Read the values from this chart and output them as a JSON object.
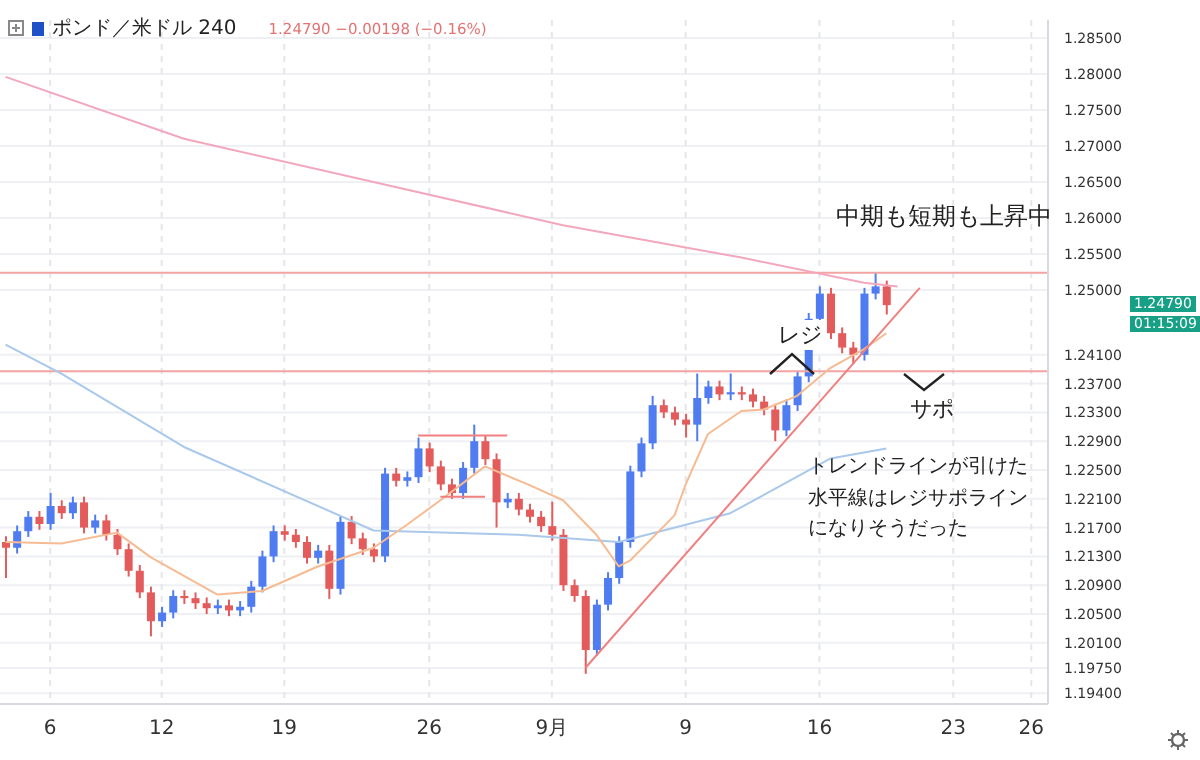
{
  "chart_data": {
    "type": "candlestick",
    "title": "ポンド／米ドル 240",
    "subtitle": "1.24790 −0.00198 (−0.16%)",
    "categories": [
      null,
      null,
      null,
      null,
      "6",
      null,
      null,
      null,
      null,
      null,
      null,
      null,
      null,
      null,
      "12",
      null,
      null,
      null,
      null,
      null,
      null,
      null,
      null,
      null,
      null,
      "19",
      null,
      null,
      null,
      null,
      null,
      null,
      null,
      null,
      null,
      null,
      null,
      null,
      "26",
      null,
      null,
      null,
      null,
      null,
      null,
      null,
      null,
      null,
      null,
      "9月",
      null,
      null,
      null,
      null,
      null,
      null,
      null,
      null,
      null,
      null,
      null,
      "9",
      null,
      null,
      null,
      null,
      null,
      null,
      null,
      null,
      null,
      null,
      null,
      "16",
      null,
      null,
      null,
      null,
      null,
      null,
      null,
      null,
      null,
      null,
      null,
      "23",
      null,
      null,
      null,
      null,
      null,
      null,
      "26",
      null
    ],
    "ohlc": [
      [
        1.215,
        1.2158,
        1.21,
        1.2142
      ],
      [
        1.2142,
        1.2173,
        1.2134,
        1.2165
      ],
      [
        1.2165,
        1.2193,
        1.2157,
        1.2185
      ],
      [
        1.2185,
        1.2193,
        1.2167,
        1.2175
      ],
      [
        1.2175,
        1.2218,
        1.2167,
        1.22
      ],
      [
        1.22,
        1.2208,
        1.2182,
        1.219
      ],
      [
        1.219,
        1.2213,
        1.2182,
        1.2205
      ],
      [
        1.2205,
        1.2213,
        1.2162,
        1.217
      ],
      [
        1.217,
        1.2188,
        1.2162,
        1.218
      ],
      [
        1.218,
        1.2188,
        1.2152,
        1.216
      ],
      [
        1.216,
        1.2168,
        1.2132,
        1.214
      ],
      [
        1.214,
        1.2148,
        1.2102,
        1.211
      ],
      [
        1.211,
        1.2118,
        1.2072,
        1.208
      ],
      [
        1.208,
        1.2088,
        1.2019,
        1.204
      ],
      [
        1.204,
        1.206,
        1.2032,
        1.2052
      ],
      [
        1.2052,
        1.2083,
        1.2044,
        1.2075
      ],
      [
        1.2075,
        1.2083,
        1.2064,
        1.2072
      ],
      [
        1.2072,
        1.208,
        1.2057,
        1.2065
      ],
      [
        1.2065,
        1.2073,
        1.205,
        1.2058
      ],
      [
        1.2058,
        1.207,
        1.205,
        1.2062
      ],
      [
        1.2062,
        1.207,
        1.2047,
        1.2055
      ],
      [
        1.2055,
        1.2068,
        1.2047,
        1.206
      ],
      [
        1.206,
        1.2096,
        1.2052,
        1.2088
      ],
      [
        1.2088,
        1.2138,
        1.208,
        1.213
      ],
      [
        1.213,
        1.2173,
        1.2122,
        1.2165
      ],
      [
        1.2165,
        1.2173,
        1.2152,
        1.216
      ],
      [
        1.216,
        1.2168,
        1.2142,
        1.215
      ],
      [
        1.215,
        1.2158,
        1.212,
        1.2128
      ],
      [
        1.2128,
        1.2146,
        1.212,
        1.2138
      ],
      [
        1.2138,
        1.2146,
        1.2071,
        1.2085
      ],
      [
        1.2085,
        1.2186,
        1.2077,
        1.2178
      ],
      [
        1.2178,
        1.2186,
        1.2147,
        1.2155
      ],
      [
        1.2155,
        1.2163,
        1.2132,
        1.214
      ],
      [
        1.214,
        1.2148,
        1.2122,
        1.213
      ],
      [
        1.213,
        1.2253,
        1.2122,
        1.2245
      ],
      [
        1.2245,
        1.2253,
        1.2227,
        1.2235
      ],
      [
        1.2235,
        1.2248,
        1.2227,
        1.224
      ],
      [
        1.224,
        1.2295,
        1.2232,
        1.228
      ],
      [
        1.228,
        1.2288,
        1.2247,
        1.2255
      ],
      [
        1.2255,
        1.2263,
        1.2222,
        1.223
      ],
      [
        1.223,
        1.2238,
        1.221,
        1.2218
      ],
      [
        1.2218,
        1.2261,
        1.221,
        1.2253
      ],
      [
        1.2253,
        1.2313,
        1.2245,
        1.229
      ],
      [
        1.229,
        1.2298,
        1.2257,
        1.2265
      ],
      [
        1.2265,
        1.2273,
        1.217,
        1.2205
      ],
      [
        1.2205,
        1.2218,
        1.2197,
        1.221
      ],
      [
        1.221,
        1.2218,
        1.2187,
        1.2195
      ],
      [
        1.2195,
        1.2203,
        1.2177,
        1.2185
      ],
      [
        1.2185,
        1.2193,
        1.2164,
        1.2172
      ],
      [
        1.2172,
        1.2206,
        1.2152,
        1.216
      ],
      [
        1.216,
        1.2168,
        1.2082,
        1.209
      ],
      [
        1.209,
        1.2098,
        1.2067,
        1.2075
      ],
      [
        1.2075,
        1.2083,
        1.1967,
        1.2
      ],
      [
        1.2,
        1.207,
        1.1992,
        1.2063
      ],
      [
        1.2063,
        1.2108,
        1.2055,
        1.21
      ],
      [
        1.21,
        1.2158,
        1.2092,
        1.215
      ],
      [
        1.215,
        1.2256,
        1.2142,
        1.2248
      ],
      [
        1.2248,
        1.2295,
        1.224,
        1.2287
      ],
      [
        1.2287,
        1.2353,
        1.2279,
        1.234
      ],
      [
        1.234,
        1.2348,
        1.2322,
        1.233
      ],
      [
        1.233,
        1.2338,
        1.2312,
        1.232
      ],
      [
        1.232,
        1.2328,
        1.2295,
        1.2313
      ],
      [
        1.2313,
        1.2384,
        1.229,
        1.235
      ],
      [
        1.235,
        1.2374,
        1.2342,
        1.2366
      ],
      [
        1.2366,
        1.2374,
        1.2347,
        1.2355
      ],
      [
        1.2355,
        1.2384,
        1.2347,
        1.2358
      ],
      [
        1.2358,
        1.2366,
        1.2347,
        1.2355
      ],
      [
        1.2355,
        1.2363,
        1.2337,
        1.2345
      ],
      [
        1.2345,
        1.2353,
        1.2326,
        1.2334
      ],
      [
        1.2334,
        1.2342,
        1.229,
        1.2305
      ],
      [
        1.2305,
        1.2348,
        1.2297,
        1.234
      ],
      [
        1.234,
        1.2388,
        1.2332,
        1.238
      ],
      [
        1.238,
        1.2468,
        1.2372,
        1.246
      ],
      [
        1.246,
        1.2505,
        1.2452,
        1.2495
      ],
      [
        1.2495,
        1.2503,
        1.2432,
        1.244
      ],
      [
        1.244,
        1.2448,
        1.2412,
        1.242
      ],
      [
        1.242,
        1.2428,
        1.2397,
        1.241
      ],
      [
        1.241,
        1.2503,
        1.2402,
        1.2495
      ],
      [
        1.2495,
        1.2524,
        1.2487,
        1.2505
      ],
      [
        1.2505,
        1.2513,
        1.2466,
        1.2479
      ],
      null,
      null,
      null,
      null,
      null,
      null,
      null,
      null,
      null,
      null,
      null,
      null,
      null,
      null
    ],
    "colors": [
      "#e45b5b",
      "#4f7cf0",
      "#4f7cf0",
      "#e45b5b",
      "#4f7cf0",
      "#e45b5b",
      "#4f7cf0",
      "#e45b5b",
      "#4f7cf0",
      "#e45b5b",
      "#e45b5b",
      "#e45b5b",
      "#e45b5b",
      "#e45b5b",
      "#4f7cf0",
      "#4f7cf0",
      "#e45b5b",
      "#e45b5b",
      "#e45b5b",
      "#4f7cf0",
      "#e45b5b",
      "#4f7cf0",
      "#4f7cf0",
      "#4f7cf0",
      "#4f7cf0",
      "#e45b5b",
      "#e45b5b",
      "#e45b5b",
      "#4f7cf0",
      "#e45b5b",
      "#4f7cf0",
      "#e45b5b",
      "#e45b5b",
      "#e45b5b",
      "#4f7cf0",
      "#e45b5b",
      "#4f7cf0",
      "#4f7cf0",
      "#e45b5b",
      "#e45b5b",
      "#e45b5b",
      "#4f7cf0",
      "#4f7cf0",
      "#e45b5b",
      "#e45b5b",
      "#4f7cf0",
      "#e45b5b",
      "#e45b5b",
      "#e45b5b",
      "#e45b5b",
      "#e45b5b",
      "#e45b5b",
      "#e45b5b",
      "#4f7cf0",
      "#4f7cf0",
      "#4f7cf0",
      "#4f7cf0",
      "#4f7cf0",
      "#4f7cf0",
      "#e45b5b",
      "#e45b5b",
      "#e45b5b",
      "#4f7cf0",
      "#4f7cf0",
      "#e45b5b",
      "#4f7cf0",
      "#e45b5b",
      "#e45b5b",
      "#e45b5b",
      "#e45b5b",
      "#4f7cf0",
      "#4f7cf0",
      "#4f7cf0",
      "#4f7cf0",
      "#e45b5b",
      "#e45b5b",
      "#e45b5b",
      "#4f7cf0",
      "#4f7cf0",
      "#e45b5b",
      null,
      null,
      null,
      null,
      null,
      null,
      null,
      null,
      null,
      null,
      null,
      null,
      null,
      null
    ],
    "series": [
      {
        "type": "line",
        "color": "#f2a7bd",
        "values": [
          1.2796,
          null,
          null,
          null,
          null,
          null,
          null,
          null,
          null,
          null,
          null,
          null,
          null,
          null,
          null,
          null,
          1.271,
          null,
          null,
          null,
          null,
          null,
          null,
          null,
          null,
          null,
          null,
          null,
          null,
          null,
          null,
          null,
          null,
          1.265,
          null,
          null,
          null,
          null,
          null,
          null,
          null,
          null,
          null,
          null,
          null,
          null,
          null,
          null,
          null,
          null,
          1.259,
          null,
          null,
          null,
          null,
          null,
          null,
          null,
          null,
          null,
          null,
          null,
          null,
          null,
          null,
          null,
          1.2545,
          null,
          null,
          null,
          null,
          null,
          null,
          null,
          null,
          null,
          null,
          1.251,
          null,
          null,
          1.2505,
          null,
          null,
          null,
          null,
          null,
          null,
          null,
          null,
          null,
          null,
          null,
          null,
          null
        ]
      },
      {
        "type": "line",
        "color": "#a9c8ea",
        "values": [
          1.2424,
          null,
          null,
          null,
          null,
          1.2384,
          null,
          null,
          null,
          null,
          null,
          null,
          null,
          null,
          null,
          null,
          1.2282,
          null,
          null,
          null,
          null,
          null,
          null,
          null,
          null,
          null,
          null,
          null,
          null,
          null,
          null,
          null,
          null,
          1.2166,
          null,
          null,
          null,
          null,
          null,
          null,
          null,
          null,
          null,
          null,
          null,
          null,
          1.216,
          null,
          null,
          null,
          null,
          null,
          null,
          null,
          null,
          1.215,
          null,
          null,
          null,
          null,
          null,
          null,
          null,
          null,
          null,
          1.219,
          null,
          null,
          null,
          null,
          null,
          null,
          null,
          null,
          1.2266,
          null,
          null,
          null,
          null,
          1.228,
          null,
          null,
          null,
          null,
          null,
          null,
          null,
          null,
          null,
          null,
          null,
          null,
          null,
          null
        ]
      },
      {
        "type": "line",
        "color": "#f6bb93",
        "values": [
          1.215,
          null,
          null,
          null,
          null,
          1.2148,
          null,
          null,
          null,
          null,
          1.2163,
          null,
          null,
          1.2129,
          null,
          null,
          null,
          null,
          null,
          1.2077,
          null,
          null,
          null,
          1.2082,
          null,
          null,
          null,
          null,
          1.2116,
          null,
          null,
          null,
          null,
          1.2142,
          null,
          null,
          1.2174,
          null,
          null,
          1.2208,
          null,
          null,
          null,
          1.2255,
          null,
          null,
          null,
          1.2229,
          null,
          null,
          1.2208,
          null,
          null,
          1.216,
          null,
          1.2116,
          1.2124,
          null,
          null,
          null,
          1.2187,
          1.223,
          null,
          1.23,
          null,
          null,
          1.2332,
          null,
          1.2334,
          null,
          null,
          1.2353,
          null,
          null,
          1.2392,
          null,
          null,
          1.2418,
          null,
          1.244,
          null,
          null,
          null,
          null,
          null,
          null,
          null,
          null,
          null,
          null,
          null,
          null,
          null,
          null
        ]
      },
      {
        "type": "line",
        "color": "#f08080",
        "values": [
          null,
          null,
          null,
          null,
          null,
          null,
          null,
          null,
          null,
          null,
          null,
          null,
          null,
          null,
          null,
          null,
          null,
          null,
          null,
          null,
          null,
          null,
          null,
          null,
          null,
          null,
          null,
          null,
          null,
          null,
          null,
          null,
          null,
          null,
          null,
          null,
          null,
          null,
          null,
          null,
          null,
          null,
          null,
          null,
          null,
          null,
          null,
          null,
          null,
          null,
          null,
          null,
          1.1975,
          null,
          null,
          null,
          null,
          null,
          null,
          null,
          null,
          null,
          null,
          null,
          null,
          null,
          null,
          null,
          null,
          null,
          null,
          null,
          null,
          null,
          null,
          null,
          null,
          null,
          null,
          null,
          null,
          null,
          1.2503,
          null,
          null,
          null,
          null,
          null,
          null,
          null,
          null,
          null,
          null,
          null
        ]
      },
      {
        "type": "line",
        "color": "#f08080",
        "values": [
          null,
          null,
          null,
          null,
          null,
          null,
          null,
          null,
          null,
          null,
          null,
          null,
          null,
          null,
          null,
          null,
          null,
          null,
          null,
          null,
          null,
          null,
          null,
          null,
          null,
          null,
          null,
          null,
          null,
          null,
          null,
          null,
          null,
          null,
          null,
          null,
          null,
          1.2298,
          null,
          null,
          null,
          null,
          null,
          null,
          null,
          1.2298,
          null,
          null,
          null,
          null,
          null,
          null,
          null,
          null,
          null,
          null,
          null,
          null,
          null,
          null,
          null,
          null,
          null,
          null,
          null,
          null,
          null,
          null,
          null,
          null,
          null,
          null,
          null,
          null,
          null,
          null,
          null,
          null,
          null,
          null,
          null,
          null,
          null,
          null,
          null,
          null,
          null,
          null,
          null,
          null,
          null,
          null,
          null,
          null
        ]
      },
      {
        "type": "line",
        "color": "#f08080",
        "values": [
          null,
          null,
          null,
          null,
          null,
          null,
          null,
          null,
          null,
          null,
          null,
          null,
          null,
          null,
          null,
          null,
          null,
          null,
          null,
          null,
          null,
          null,
          null,
          null,
          null,
          null,
          null,
          null,
          null,
          null,
          null,
          null,
          null,
          null,
          null,
          null,
          null,
          null,
          null,
          1.2213,
          null,
          null,
          null,
          1.2213,
          null,
          null,
          null,
          null,
          null,
          null,
          null,
          null,
          null,
          null,
          null,
          null,
          null,
          null,
          null,
          null,
          null,
          null,
          null,
          null,
          null,
          null,
          null,
          null,
          null,
          null,
          null,
          null,
          null,
          null,
          null,
          null,
          null,
          null,
          null,
          null,
          null,
          null,
          null,
          null,
          null,
          null,
          null,
          null,
          null,
          null,
          null,
          null,
          null,
          null
        ]
      }
    ],
    "ref_lines": [
      {
        "axis": "y",
        "value": 1.2524,
        "color": "#f4a3a3"
      },
      {
        "axis": "y",
        "value": 1.2387,
        "color": "#f4a3a3"
      }
    ],
    "ylim": [
      1.1925,
      1.2875
    ],
    "yticks": [
      {
        "value": 1.285,
        "label": "1.28500"
      },
      {
        "value": 1.28,
        "label": "1.28000"
      },
      {
        "value": 1.275,
        "label": "1.27500"
      },
      {
        "value": 1.27,
        "label": "1.27000"
      },
      {
        "value": 1.265,
        "label": "1.26500"
      },
      {
        "value": 1.26,
        "label": "1.26000"
      },
      {
        "value": 1.255,
        "label": "1.25500"
      },
      {
        "value": 1.25,
        "label": "1.25000"
      },
      {
        "value": 1.241,
        "label": "1.24100"
      },
      {
        "value": 1.237,
        "label": "1.23700"
      },
      {
        "value": 1.233,
        "label": "1.23300"
      },
      {
        "value": 1.229,
        "label": "1.22900"
      },
      {
        "value": 1.225,
        "label": "1.22500"
      },
      {
        "value": 1.221,
        "label": "1.22100"
      },
      {
        "value": 1.217,
        "label": "1.21700"
      },
      {
        "value": 1.213,
        "label": "1.21300"
      },
      {
        "value": 1.209,
        "label": "1.20900"
      },
      {
        "value": 1.205,
        "label": "1.20500"
      },
      {
        "value": 1.201,
        "label": "1.20100"
      },
      {
        "value": 1.1975,
        "label": "1.19750"
      },
      {
        "value": 1.194,
        "label": "1.19400"
      }
    ],
    "grid": true,
    "annotations": [
      "中期も短期も上昇中",
      "レジ",
      "サポ",
      "トレンドラインが引けた水平線はレジサポラインになりそうだった",
      "1.24790",
      "01:15:09"
    ]
  }
}
